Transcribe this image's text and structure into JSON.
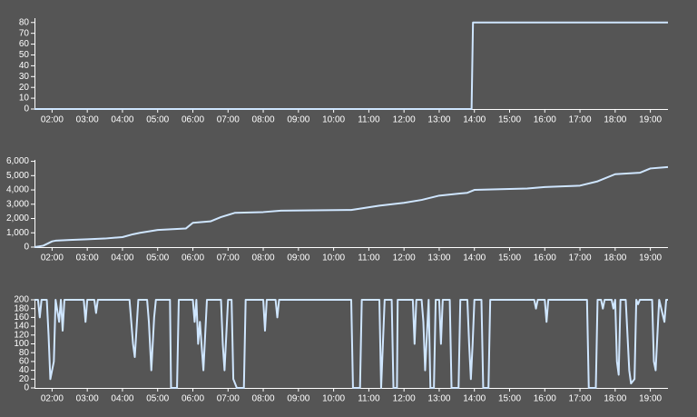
{
  "chart_data": [
    {
      "type": "line",
      "color": "#cfe6ff",
      "x": [
        1.5,
        13.92,
        13.96,
        19.5
      ],
      "values": [
        0,
        0,
        80,
        80
      ],
      "xlim": [
        1.5,
        19.5
      ],
      "xticks": [
        {
          "value": 2,
          "label": "02:00"
        },
        {
          "value": 3,
          "label": "03:00"
        },
        {
          "value": 4,
          "label": "04:00"
        },
        {
          "value": 5,
          "label": "05:00"
        },
        {
          "value": 6,
          "label": "06:00"
        },
        {
          "value": 7,
          "label": "07:00"
        },
        {
          "value": 8,
          "label": "08:00"
        },
        {
          "value": 9,
          "label": "09:00"
        },
        {
          "value": 10,
          "label": "10:00"
        },
        {
          "value": 11,
          "label": "11:00"
        },
        {
          "value": 12,
          "label": "12:00"
        },
        {
          "value": 13,
          "label": "13:00"
        },
        {
          "value": 14,
          "label": "14:00"
        },
        {
          "value": 15,
          "label": "15:00"
        },
        {
          "value": 16,
          "label": "16:00"
        },
        {
          "value": 17,
          "label": "17:00"
        },
        {
          "value": 18,
          "label": "18:00"
        },
        {
          "value": 19,
          "label": "19:00"
        }
      ],
      "ylim": [
        0,
        84
      ],
      "yticks": [
        0,
        10,
        20,
        30,
        40,
        50,
        60,
        70,
        80
      ]
    },
    {
      "type": "line",
      "color": "#cfe6ff",
      "x": [
        1.5,
        1.75,
        2.0,
        2.1,
        2.5,
        3.0,
        3.5,
        4.0,
        4.3,
        4.5,
        5.0,
        5.8,
        6.0,
        6.5,
        6.8,
        7.2,
        8.0,
        8.5,
        10.5,
        11.3,
        12.0,
        12.5,
        13.0,
        13.8,
        14.0,
        15.5,
        16.0,
        17.0,
        17.5,
        18.0,
        18.7,
        19.0,
        19.5
      ],
      "values": [
        0,
        100,
        400,
        450,
        500,
        550,
        600,
        700,
        900,
        1000,
        1200,
        1300,
        1700,
        1800,
        2100,
        2400,
        2450,
        2550,
        2600,
        2900,
        3100,
        3300,
        3600,
        3800,
        4000,
        4100,
        4200,
        4300,
        4600,
        5100,
        5200,
        5500,
        5600
      ],
      "xlim": [
        1.5,
        19.5
      ],
      "xticks": [
        {
          "value": 2,
          "label": "02:00"
        },
        {
          "value": 3,
          "label": "03:00"
        },
        {
          "value": 4,
          "label": "04:00"
        },
        {
          "value": 5,
          "label": "05:00"
        },
        {
          "value": 6,
          "label": "06:00"
        },
        {
          "value": 7,
          "label": "07:00"
        },
        {
          "value": 8,
          "label": "08:00"
        },
        {
          "value": 9,
          "label": "09:00"
        },
        {
          "value": 10,
          "label": "10:00"
        },
        {
          "value": 11,
          "label": "11:00"
        },
        {
          "value": 12,
          "label": "12:00"
        },
        {
          "value": 13,
          "label": "13:00"
        },
        {
          "value": 14,
          "label": "14:00"
        },
        {
          "value": 15,
          "label": "15:00"
        },
        {
          "value": 16,
          "label": "16:00"
        },
        {
          "value": 17,
          "label": "17:00"
        },
        {
          "value": 18,
          "label": "18:00"
        },
        {
          "value": 19,
          "label": "19:00"
        }
      ],
      "ylim": [
        0,
        6100
      ],
      "yticks": [
        0,
        {
          "value": 1000,
          "label": "1,000"
        },
        {
          "value": 2000,
          "label": "2,000"
        },
        {
          "value": 3000,
          "label": "3,000"
        },
        {
          "value": 4000,
          "label": "4,000"
        },
        {
          "value": 5000,
          "label": "5,000"
        },
        {
          "value": 6000,
          "label": "6,000"
        }
      ]
    },
    {
      "type": "line",
      "color": "#cfe6ff",
      "x": [
        1.5,
        1.6,
        1.65,
        1.7,
        1.85,
        1.9,
        1.95,
        2.05,
        2.1,
        2.2,
        2.25,
        2.3,
        2.35,
        2.9,
        2.95,
        3.0,
        3.2,
        3.25,
        3.3,
        4.2,
        4.3,
        4.35,
        4.45,
        4.7,
        4.75,
        4.82,
        4.9,
        4.95,
        5.35,
        5.38,
        5.55,
        5.6,
        6.0,
        6.05,
        6.1,
        6.15,
        6.2,
        6.3,
        6.4,
        6.8,
        6.85,
        6.9,
        7.0,
        7.1,
        7.15,
        7.25,
        7.45,
        7.5,
        8.0,
        8.05,
        8.1,
        8.35,
        8.4,
        8.45,
        10.5,
        10.55,
        10.75,
        10.8,
        11.3,
        11.35,
        11.45,
        11.65,
        11.7,
        11.8,
        11.82,
        12.25,
        12.3,
        12.35,
        12.5,
        12.55,
        12.6,
        12.7,
        12.75,
        12.85,
        12.9,
        13.0,
        13.05,
        13.1,
        13.3,
        13.35,
        13.55,
        13.6,
        13.8,
        13.85,
        13.9,
        13.95,
        14.0,
        14.2,
        14.25,
        14.4,
        14.45,
        15.7,
        15.75,
        15.8,
        16.0,
        16.05,
        16.1,
        17.2,
        17.25,
        17.45,
        17.5,
        17.6,
        17.65,
        17.7,
        17.9,
        17.95,
        18.0,
        18.05,
        18.1,
        18.15,
        18.3,
        18.35,
        18.4,
        18.45,
        18.55,
        18.6,
        18.65,
        18.7,
        19.05,
        19.1,
        19.15,
        19.25,
        19.4,
        19.45,
        19.5
      ],
      "values": [
        200,
        200,
        160,
        200,
        200,
        120,
        20,
        60,
        200,
        150,
        200,
        130,
        200,
        200,
        150,
        200,
        200,
        170,
        200,
        200,
        100,
        70,
        200,
        200,
        150,
        40,
        160,
        200,
        200,
        0,
        0,
        200,
        200,
        150,
        200,
        100,
        150,
        40,
        200,
        200,
        100,
        40,
        200,
        200,
        20,
        0,
        0,
        200,
        200,
        130,
        200,
        200,
        160,
        200,
        200,
        0,
        0,
        200,
        200,
        0,
        200,
        200,
        0,
        0,
        200,
        200,
        100,
        200,
        200,
        150,
        40,
        200,
        0,
        0,
        200,
        200,
        100,
        200,
        200,
        0,
        0,
        200,
        200,
        100,
        20,
        100,
        200,
        200,
        0,
        0,
        200,
        200,
        180,
        200,
        200,
        150,
        200,
        200,
        0,
        0,
        200,
        200,
        180,
        200,
        200,
        180,
        200,
        60,
        30,
        200,
        200,
        120,
        40,
        10,
        20,
        200,
        190,
        200,
        200,
        60,
        40,
        200,
        150,
        200,
        200
      ],
      "xlim": [
        1.5,
        19.5
      ],
      "xticks": [
        {
          "value": 2,
          "label": "02:00"
        },
        {
          "value": 3,
          "label": "03:00"
        },
        {
          "value": 4,
          "label": "04:00"
        },
        {
          "value": 5,
          "label": "05:00"
        },
        {
          "value": 6,
          "label": "06:00"
        },
        {
          "value": 7,
          "label": "07:00"
        },
        {
          "value": 8,
          "label": "08:00"
        },
        {
          "value": 9,
          "label": "09:00"
        },
        {
          "value": 10,
          "label": "10:00"
        },
        {
          "value": 11,
          "label": "11:00"
        },
        {
          "value": 12,
          "label": "12:00"
        },
        {
          "value": 13,
          "label": "13:00"
        },
        {
          "value": 14,
          "label": "14:00"
        },
        {
          "value": 15,
          "label": "15:00"
        },
        {
          "value": 16,
          "label": "16:00"
        },
        {
          "value": 17,
          "label": "17:00"
        },
        {
          "value": 18,
          "label": "18:00"
        },
        {
          "value": 19,
          "label": "19:00"
        }
      ],
      "ylim": [
        0,
        200
      ],
      "yticks": [
        0,
        20,
        40,
        60,
        80,
        100,
        120,
        140,
        160,
        180,
        200
      ]
    }
  ]
}
